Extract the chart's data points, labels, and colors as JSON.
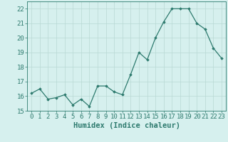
{
  "x": [
    0,
    1,
    2,
    3,
    4,
    5,
    6,
    7,
    8,
    9,
    10,
    11,
    12,
    13,
    14,
    15,
    16,
    17,
    18,
    19,
    20,
    21,
    22,
    23
  ],
  "y": [
    16.2,
    16.5,
    15.8,
    15.9,
    16.1,
    15.4,
    15.8,
    15.3,
    16.7,
    16.7,
    16.3,
    16.1,
    17.5,
    19.0,
    18.5,
    20.0,
    21.1,
    22.0,
    22.0,
    22.0,
    21.0,
    20.6,
    19.3,
    18.6
  ],
  "xlabel": "Humidex (Indice chaleur)",
  "ylim": [
    15,
    22.5
  ],
  "xlim": [
    -0.5,
    23.5
  ],
  "yticks": [
    15,
    16,
    17,
    18,
    19,
    20,
    21,
    22
  ],
  "xticks": [
    0,
    1,
    2,
    3,
    4,
    5,
    6,
    7,
    8,
    9,
    10,
    11,
    12,
    13,
    14,
    15,
    16,
    17,
    18,
    19,
    20,
    21,
    22,
    23
  ],
  "line_color": "#2d7a6e",
  "marker_color": "#2d7a6e",
  "bg_color": "#d6f0ee",
  "grid_color": "#b8d8d4",
  "axes_color": "#2d7a6e",
  "tick_label_fontsize": 6.5,
  "xlabel_fontsize": 7.5
}
